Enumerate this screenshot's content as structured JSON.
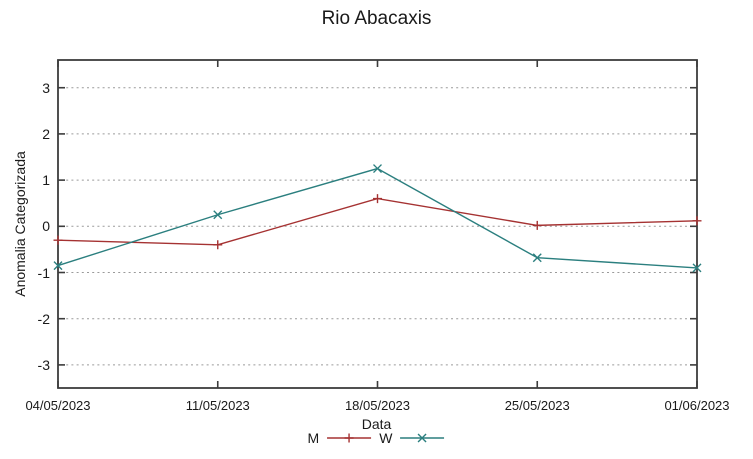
{
  "chart_data": {
    "type": "line",
    "title": "Rio Abacaxis",
    "xlabel": "Data",
    "ylabel": "Anomalia Categorizada",
    "categories": [
      "04/05/2023",
      "11/05/2023",
      "18/05/2023",
      "25/05/2023",
      "01/06/2023"
    ],
    "y_ticks": [
      3,
      2,
      1,
      0,
      -1,
      -2,
      -3
    ],
    "ylim": [
      -3.5,
      3.6
    ],
    "grid": true,
    "legend_position": "bottom-center",
    "series": [
      {
        "name": "M",
        "marker": "plus",
        "color": "#a53232",
        "values": [
          -0.3,
          -0.4,
          0.6,
          0.02,
          0.12
        ]
      },
      {
        "name": "W",
        "marker": "cross",
        "color": "#2b7f7f",
        "values": [
          -0.85,
          0.25,
          1.25,
          -0.68,
          -0.9
        ]
      }
    ],
    "colors": {
      "border": "#3c3c3c",
      "grid": "#9a9a9a",
      "text": "#1a1a1a"
    }
  }
}
